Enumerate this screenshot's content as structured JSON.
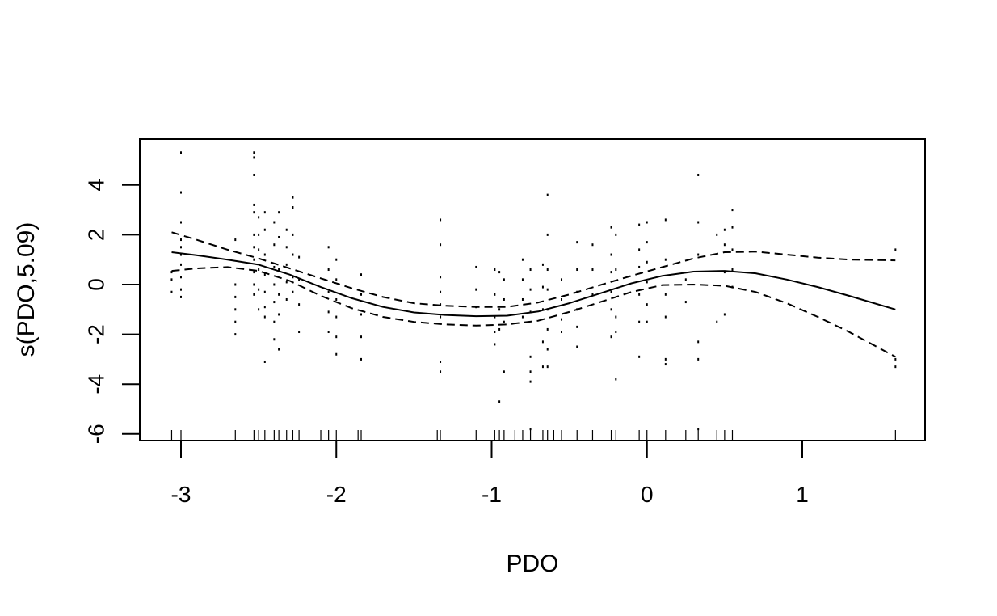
{
  "chart_data": {
    "type": "line",
    "title": "",
    "xlabel": "PDO",
    "ylabel": "s(PDO,5.09)",
    "xlim": [
      -3.09,
      1.61
    ],
    "ylim": [
      -6.0,
      5.4
    ],
    "x_ticks": [
      -3,
      -2,
      -1,
      0,
      1
    ],
    "x_tick_labels": [
      "-3",
      "-2",
      "-1",
      "0",
      "1"
    ],
    "y_ticks": [
      -6,
      -4,
      -2,
      0,
      2,
      4
    ],
    "y_tick_labels": [
      "-6",
      "-4",
      "-2",
      "0",
      "2",
      "4"
    ],
    "grid": false,
    "legend": "none",
    "series": [
      {
        "style": "solid",
        "x": [
          -3.06,
          -2.9,
          -2.7,
          -2.5,
          -2.3,
          -2.1,
          -1.9,
          -1.7,
          -1.5,
          -1.3,
          -1.1,
          -0.9,
          -0.7,
          -0.5,
          -0.3,
          -0.1,
          0.1,
          0.3,
          0.5,
          0.7,
          0.9,
          1.1,
          1.3,
          1.6
        ],
        "y": [
          1.3,
          1.18,
          1.0,
          0.8,
          0.4,
          -0.1,
          -0.55,
          -0.9,
          -1.12,
          -1.22,
          -1.27,
          -1.25,
          -1.08,
          -0.75,
          -0.35,
          0.05,
          0.35,
          0.52,
          0.55,
          0.45,
          0.2,
          -0.1,
          -0.45,
          -1.0
        ]
      },
      {
        "style": "dashed",
        "x": [
          -3.06,
          -2.9,
          -2.7,
          -2.5,
          -2.3,
          -2.1,
          -1.9,
          -1.7,
          -1.5,
          -1.3,
          -1.1,
          -0.9,
          -0.7,
          -0.5,
          -0.3,
          -0.1,
          0.1,
          0.3,
          0.5,
          0.7,
          0.9,
          1.1,
          1.3,
          1.6
        ],
        "y": [
          2.1,
          1.8,
          1.4,
          1.05,
          0.65,
          0.25,
          -0.15,
          -0.5,
          -0.75,
          -0.85,
          -0.9,
          -0.9,
          -0.72,
          -0.4,
          -0.02,
          0.35,
          0.7,
          1.05,
          1.3,
          1.32,
          1.2,
          1.08,
          1.0,
          0.97
        ]
      },
      {
        "style": "dashed",
        "x": [
          -3.06,
          -2.9,
          -2.7,
          -2.5,
          -2.3,
          -2.1,
          -1.9,
          -1.7,
          -1.5,
          -1.3,
          -1.1,
          -0.9,
          -0.7,
          -0.5,
          -0.3,
          -0.1,
          0.1,
          0.3,
          0.5,
          0.7,
          0.9,
          1.1,
          1.3,
          1.6
        ],
        "y": [
          0.55,
          0.65,
          0.7,
          0.55,
          0.15,
          -0.45,
          -0.95,
          -1.3,
          -1.5,
          -1.6,
          -1.65,
          -1.6,
          -1.45,
          -1.1,
          -0.7,
          -0.3,
          -0.02,
          0.0,
          -0.05,
          -0.3,
          -0.75,
          -1.3,
          -1.9,
          -2.9
        ]
      }
    ],
    "residuals": [
      [
        -3.06,
        -0.3
      ],
      [
        -3.06,
        0.2
      ],
      [
        -3.06,
        0.5
      ],
      [
        -3.0,
        5.3
      ],
      [
        -3.0,
        3.7
      ],
      [
        -3.0,
        2.5
      ],
      [
        -3.0,
        1.8
      ],
      [
        -3.0,
        1.5
      ],
      [
        -3.0,
        1.2
      ],
      [
        -3.0,
        0.8
      ],
      [
        -3.0,
        0.3
      ],
      [
        -3.0,
        -0.2
      ],
      [
        -3.0,
        -0.5
      ],
      [
        -2.65,
        1.8
      ],
      [
        -2.65,
        0.0
      ],
      [
        -2.65,
        -0.5
      ],
      [
        -2.65,
        -1.0
      ],
      [
        -2.65,
        -1.5
      ],
      [
        -2.65,
        -2.0
      ],
      [
        -2.53,
        5.3
      ],
      [
        -2.53,
        5.1
      ],
      [
        -2.53,
        4.4
      ],
      [
        -2.53,
        3.2
      ],
      [
        -2.53,
        2.9
      ],
      [
        -2.53,
        2.0
      ],
      [
        -2.53,
        1.5
      ],
      [
        -2.53,
        1.0
      ],
      [
        -2.53,
        0.5
      ],
      [
        -2.53,
        0.0
      ],
      [
        -2.53,
        -0.4
      ],
      [
        -2.5,
        2.7
      ],
      [
        -2.5,
        2.0
      ],
      [
        -2.5,
        1.4
      ],
      [
        -2.5,
        0.6
      ],
      [
        -2.5,
        -0.2
      ],
      [
        -2.5,
        -1.0
      ],
      [
        -2.46,
        2.9
      ],
      [
        -2.46,
        2.2
      ],
      [
        -2.46,
        1.2
      ],
      [
        -2.46,
        0.4
      ],
      [
        -2.46,
        -0.3
      ],
      [
        -2.46,
        -0.9
      ],
      [
        -2.46,
        -1.3
      ],
      [
        -2.46,
        -3.1
      ],
      [
        -2.4,
        2.5
      ],
      [
        -2.4,
        1.6
      ],
      [
        -2.4,
        0.7
      ],
      [
        -2.4,
        0.0
      ],
      [
        -2.4,
        -0.7
      ],
      [
        -2.4,
        -1.5
      ],
      [
        -2.4,
        -2.2
      ],
      [
        -2.37,
        2.9
      ],
      [
        -2.37,
        1.9
      ],
      [
        -2.37,
        0.6
      ],
      [
        -2.37,
        -0.4
      ],
      [
        -2.37,
        -1.2
      ],
      [
        -2.37,
        -2.6
      ],
      [
        -2.32,
        2.2
      ],
      [
        -2.32,
        1.5
      ],
      [
        -2.32,
        0.8
      ],
      [
        -2.32,
        0.1
      ],
      [
        -2.32,
        -0.6
      ],
      [
        -2.28,
        3.5
      ],
      [
        -2.28,
        3.1
      ],
      [
        -2.28,
        2.0
      ],
      [
        -2.28,
        1.2
      ],
      [
        -2.28,
        0.3
      ],
      [
        -2.28,
        -0.3
      ],
      [
        -2.24,
        1.1
      ],
      [
        -2.24,
        0.2
      ],
      [
        -2.24,
        -0.8
      ],
      [
        -2.24,
        -1.9
      ],
      [
        -2.05,
        1.5
      ],
      [
        -2.05,
        0.6
      ],
      [
        -2.05,
        -0.3
      ],
      [
        -2.05,
        -1.1
      ],
      [
        -2.05,
        -1.9
      ],
      [
        -2.0,
        1.0
      ],
      [
        -2.0,
        0.2
      ],
      [
        -2.0,
        -0.6
      ],
      [
        -2.0,
        -1.3
      ],
      [
        -2.0,
        -2.1
      ],
      [
        -2.0,
        -2.8
      ],
      [
        -1.84,
        0.4
      ],
      [
        -1.84,
        -0.4
      ],
      [
        -1.84,
        -1.2
      ],
      [
        -1.84,
        -2.1
      ],
      [
        -1.84,
        -3.0
      ],
      [
        -1.33,
        2.6
      ],
      [
        -1.33,
        1.6
      ],
      [
        -1.33,
        0.3
      ],
      [
        -1.33,
        -0.3
      ],
      [
        -1.33,
        -0.8
      ],
      [
        -1.33,
        -1.3
      ],
      [
        -1.33,
        -3.1
      ],
      [
        -1.33,
        -3.5
      ],
      [
        -1.1,
        0.7
      ],
      [
        -1.1,
        -0.2
      ],
      [
        -1.1,
        -0.9
      ],
      [
        -0.98,
        0.6
      ],
      [
        -0.98,
        -0.4
      ],
      [
        -0.98,
        -1.3
      ],
      [
        -0.98,
        -1.9
      ],
      [
        -0.98,
        -2.4
      ],
      [
        -0.95,
        0.5
      ],
      [
        -0.95,
        -1.0
      ],
      [
        -0.95,
        -1.8
      ],
      [
        -0.95,
        -4.7
      ],
      [
        -0.92,
        0.2
      ],
      [
        -0.92,
        -0.6
      ],
      [
        -0.92,
        -1.5
      ],
      [
        -0.92,
        -3.5
      ],
      [
        -0.8,
        1.0
      ],
      [
        -0.8,
        0.2
      ],
      [
        -0.8,
        -0.6
      ],
      [
        -0.8,
        -1.3
      ],
      [
        -0.75,
        0.6
      ],
      [
        -0.75,
        -0.2
      ],
      [
        -0.75,
        -1.1
      ],
      [
        -0.75,
        -2.9
      ],
      [
        -0.75,
        -3.5
      ],
      [
        -0.75,
        -3.9
      ],
      [
        -0.75,
        -5.8
      ],
      [
        -0.67,
        0.8
      ],
      [
        -0.67,
        -0.1
      ],
      [
        -0.67,
        -1.0
      ],
      [
        -0.67,
        -2.3
      ],
      [
        -0.67,
        -3.3
      ],
      [
        -0.64,
        3.6
      ],
      [
        -0.64,
        2.0
      ],
      [
        -0.64,
        0.6
      ],
      [
        -0.64,
        -0.2
      ],
      [
        -0.64,
        -1.0
      ],
      [
        -0.64,
        -1.8
      ],
      [
        -0.64,
        -2.6
      ],
      [
        -0.64,
        -3.3
      ],
      [
        -0.55,
        0.2
      ],
      [
        -0.55,
        -0.6
      ],
      [
        -0.55,
        -1.4
      ],
      [
        -0.55,
        -1.9
      ],
      [
        -0.45,
        1.7
      ],
      [
        -0.45,
        0.6
      ],
      [
        -0.45,
        -0.3
      ],
      [
        -0.45,
        -1.0
      ],
      [
        -0.45,
        -1.7
      ],
      [
        -0.45,
        -2.5
      ],
      [
        -0.35,
        1.6
      ],
      [
        -0.35,
        0.6
      ],
      [
        -0.35,
        -0.4
      ],
      [
        -0.23,
        2.3
      ],
      [
        -0.23,
        1.2
      ],
      [
        -0.23,
        0.5
      ],
      [
        -0.23,
        -0.3
      ],
      [
        -0.23,
        -1.0
      ],
      [
        -0.23,
        -2.1
      ],
      [
        -0.2,
        2.0
      ],
      [
        -0.2,
        0.6
      ],
      [
        -0.2,
        -1.3
      ],
      [
        -0.2,
        -1.9
      ],
      [
        -0.2,
        -3.8
      ],
      [
        -0.05,
        2.4
      ],
      [
        -0.05,
        1.4
      ],
      [
        -0.05,
        0.7
      ],
      [
        -0.05,
        -0.4
      ],
      [
        -0.05,
        -1.5
      ],
      [
        -0.05,
        -2.9
      ],
      [
        0.0,
        2.5
      ],
      [
        0.0,
        1.7
      ],
      [
        0.0,
        0.9
      ],
      [
        0.0,
        0.1
      ],
      [
        0.0,
        -0.8
      ],
      [
        0.0,
        -1.5
      ],
      [
        0.12,
        2.6
      ],
      [
        0.12,
        1.0
      ],
      [
        0.12,
        -0.4
      ],
      [
        0.12,
        -1.3
      ],
      [
        0.12,
        -3.0
      ],
      [
        0.12,
        -3.2
      ],
      [
        0.25,
        0.2
      ],
      [
        0.25,
        -0.7
      ],
      [
        0.33,
        4.4
      ],
      [
        0.33,
        2.5
      ],
      [
        0.33,
        1.2
      ],
      [
        0.33,
        -2.3
      ],
      [
        0.33,
        -3.0
      ],
      [
        0.33,
        -5.8
      ],
      [
        0.45,
        2.0
      ],
      [
        0.45,
        -1.5
      ],
      [
        0.5,
        2.2
      ],
      [
        0.5,
        1.6
      ],
      [
        0.5,
        0.5
      ],
      [
        0.5,
        -1.2
      ],
      [
        0.55,
        3.0
      ],
      [
        0.55,
        2.3
      ],
      [
        0.55,
        1.4
      ],
      [
        0.55,
        0.6
      ],
      [
        0.55,
        -0.1
      ],
      [
        1.6,
        1.4
      ],
      [
        1.6,
        -3.0
      ],
      [
        1.6,
        -3.3
      ]
    ],
    "rug_x": [
      -3.06,
      -3.0,
      -2.65,
      -2.53,
      -2.5,
      -2.46,
      -2.4,
      -2.37,
      -2.32,
      -2.28,
      -2.24,
      -2.1,
      -2.05,
      -2.0,
      -1.86,
      -1.84,
      -1.35,
      -1.33,
      -1.1,
      -0.98,
      -0.95,
      -0.92,
      -0.85,
      -0.8,
      -0.75,
      -0.67,
      -0.64,
      -0.6,
      -0.55,
      -0.45,
      -0.35,
      -0.23,
      -0.2,
      -0.05,
      0.0,
      0.12,
      0.25,
      0.33,
      0.45,
      0.5,
      0.55,
      1.6
    ]
  }
}
